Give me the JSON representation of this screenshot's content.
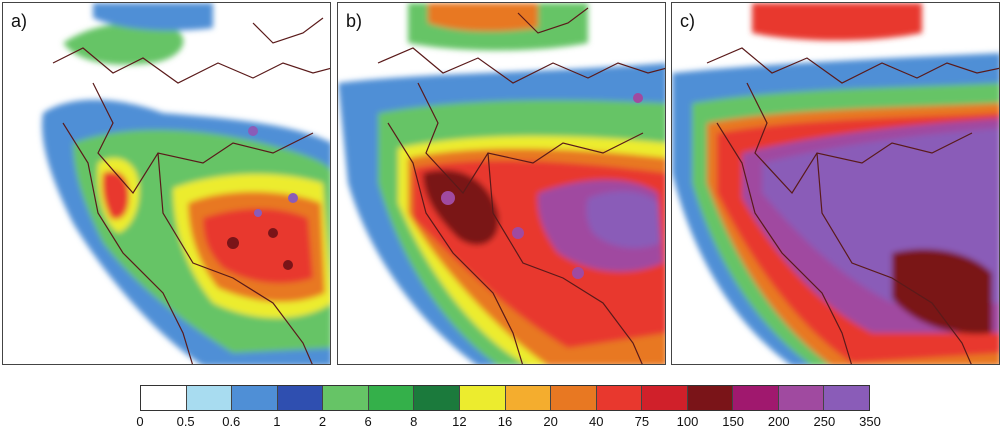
{
  "panels": [
    {
      "id": "a",
      "label": "a)"
    },
    {
      "id": "b",
      "label": "b)"
    },
    {
      "id": "c",
      "label": "c)"
    }
  ],
  "legend": {
    "ticks": [
      "0",
      "0.5",
      "0.6",
      "1",
      "2",
      "6",
      "8",
      "12",
      "16",
      "20",
      "40",
      "75",
      "100",
      "150",
      "200",
      "250",
      "350"
    ],
    "colors": [
      "#ffffff",
      "#a8dcf0",
      "#4f8fd6",
      "#2f4fb0",
      "#66c466",
      "#34b04a",
      "#1b7a3c",
      "#ecec2e",
      "#f4ad2e",
      "#e87822",
      "#e8382e",
      "#d0202a",
      "#7a1418",
      "#a0186e",
      "#a04aa0",
      "#8a5cb8"
    ]
  },
  "colors": {
    "land_bg": "#ffffff",
    "border_line": "#5a1a1a"
  }
}
